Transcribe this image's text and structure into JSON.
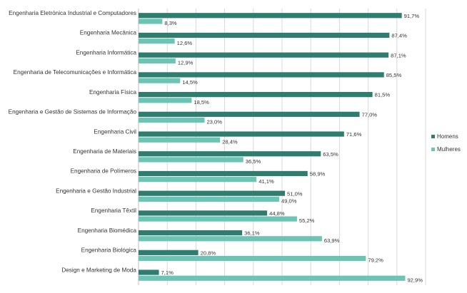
{
  "chart_data": {
    "type": "bar",
    "orientation": "horizontal",
    "categories": [
      "Engenharia Eletrónica Industrial e Computadores",
      "Engenharia Mecânica",
      "Engenharia Informática",
      "Engenharia de Telecomunicações e Informática",
      "Engenharia Física",
      "Engenharia e Gestão de Sistemas de Informação",
      "Engenharia Civil",
      "Engenharia de Materiais",
      "Engenharia de Polímeros",
      "Engenharia e Gestão Industrial",
      "Engenharia Têxtil",
      "Engenharia Biomédica",
      "Engenharia Biológica",
      "Design e Marketing de Moda"
    ],
    "series": [
      {
        "name": "Homens",
        "color": "#2e7d6e",
        "values": [
          91.7,
          87.4,
          87.1,
          85.5,
          81.5,
          77.0,
          71.6,
          63.5,
          58.9,
          51.0,
          44.8,
          36.1,
          20.8,
          7.1
        ],
        "labels": [
          "91,7%",
          "87,4%",
          "87,1%",
          "85,5%",
          "81,5%",
          "77,0%",
          "71,6%",
          "63,5%",
          "58,9%",
          "51,0%",
          "44,8%",
          "36,1%",
          "20,8%",
          "7,1%"
        ]
      },
      {
        "name": "Mulheres",
        "color": "#6cc4b4",
        "values": [
          8.3,
          12.6,
          12.9,
          14.5,
          18.5,
          23.0,
          28.4,
          36.5,
          41.1,
          49.0,
          55.2,
          63.9,
          79.2,
          92.9
        ],
        "labels": [
          "8,3%",
          "12,6%",
          "12,9%",
          "14,5%",
          "18,5%",
          "23,0%",
          "28,4%",
          "36,5%",
          "41,1%",
          "49,0%",
          "55,2%",
          "63,9%",
          "79,2%",
          "92,9%"
        ]
      }
    ],
    "xlim": [
      0,
      100
    ],
    "grid": true,
    "legend_position": "right",
    "title": "",
    "xlabel": "",
    "ylabel": ""
  }
}
